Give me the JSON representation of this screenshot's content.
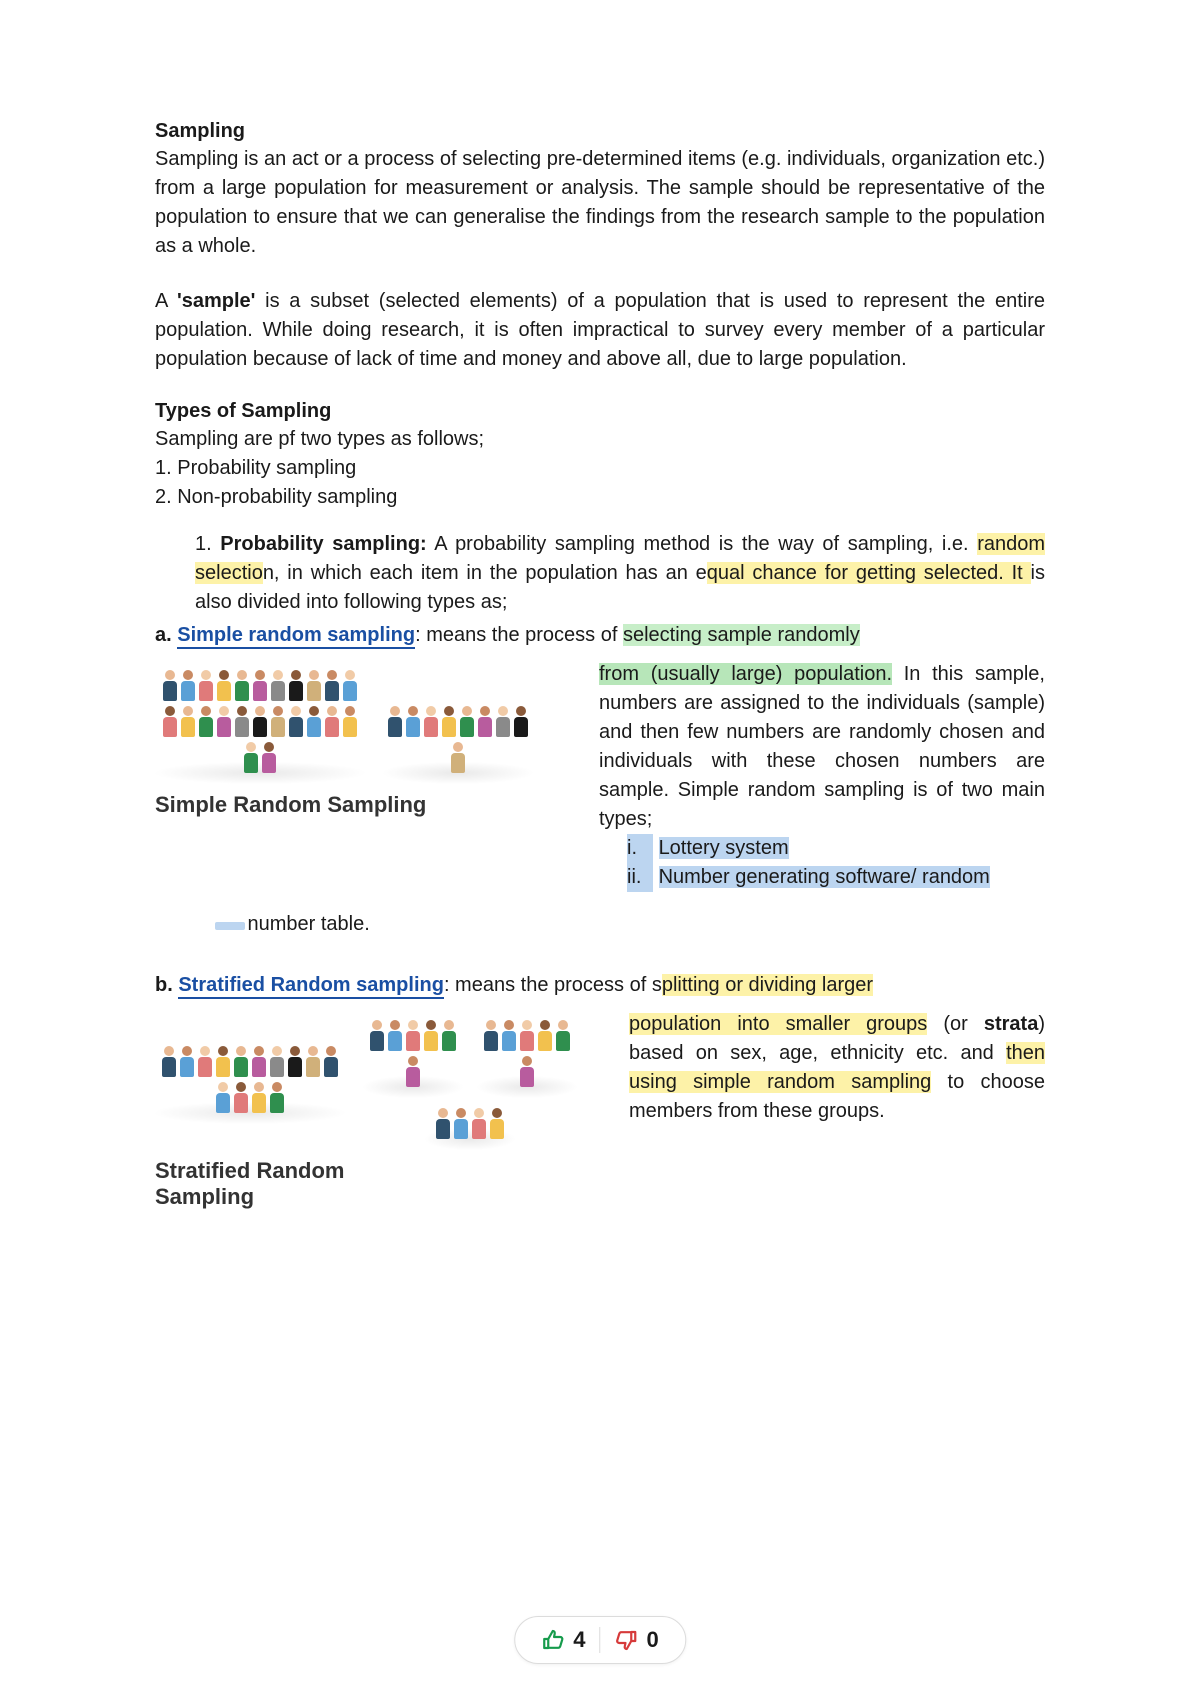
{
  "colors": {
    "text": "#1a1a1a",
    "link_blue": "#1a4fa3",
    "hl_yellow": "#fdf2a8",
    "hl_green": "#c7eec8",
    "hl_blue": "#bcd5f0",
    "up_green": "#169b4c",
    "down_red": "#d63a3a"
  },
  "heading1": "Sampling",
  "para1": "Sampling is an act or a process of selecting pre-determined items (e.g. individuals, organization etc.) from a large population for measurement or analysis. The sample should be representative of the population to ensure that we can generalise the findings from the research sample to the population as a whole.",
  "para2_pre": "A ",
  "para2_bold": "'sample'",
  "para2_post": " is a subset (selected elements) of a population that is used to represent the entire population. While doing research, it is often impractical to survey every member of a particular population because of lack of time and money and above all, due to large population.",
  "heading2": "Types of Sampling",
  "types_intro": "Sampling are pf two types as follows;",
  "types_1": "1. Probability sampling",
  "types_2": "2. Non-probability sampling",
  "prob": {
    "num": "1. ",
    "title": "Probability sampling:",
    "line1_pre": " A probability sampling method is the way of sampling, i.e. ",
    "hl1": "random selectio",
    "line1_mid": "n, in which each item in the population has an e",
    "hl2": "qual chance for getting selected. It ",
    "line1_post": " is also divided into following types as;"
  },
  "srs": {
    "prefix": "a. ",
    "link": "Simple random sampling",
    "after_link": ": means the process of ",
    "hl_green1": "selecting sample randomly",
    "side_hl_green2": "from (usually large) population.",
    "side_rest": " In this sample, numbers are assigned to the individuals (sample) and then few numbers are randomly chosen and individuals with these chosen numbers are sample. Simple random sampling is of two main types;",
    "roman_i_label": "i.",
    "roman_i": "Lottery system",
    "roman_ii_label": "ii.",
    "roman_ii_a": "Number generating software/ random",
    "number_table": "number table.",
    "caption": "Simple Random Sampling"
  },
  "strat": {
    "prefix": "b. ",
    "link": "Stratified Random sampling",
    "after_link": ": means the process of s",
    "hl_y1": "plitting or dividing larger",
    "side_hl_y2_a": "population into smaller groups",
    "side_plain_or": " (or ",
    "side_bold_strata": "strata",
    "side_plain_based": ") based on sex, age, ethnicity etc. and ",
    "side_hl_y3": "then using simple random sampling",
    "side_plain_tail": " to choose members from these groups.",
    "caption": "Stratified Random Sampling"
  },
  "illus": {
    "big_crowd_count": 24,
    "small_crowd_count": 9,
    "strat_big_count": 14,
    "strat_small_counts": [
      6,
      6,
      4
    ],
    "palette": [
      "#30526e",
      "#5aa0d6",
      "#e07a7a",
      "#f2c14e",
      "#2f8f4e",
      "#b85c9e",
      "#8a8a8a",
      "#1a1a1a",
      "#d0b07a"
    ]
  },
  "votes": {
    "up": "4",
    "down": "0"
  }
}
